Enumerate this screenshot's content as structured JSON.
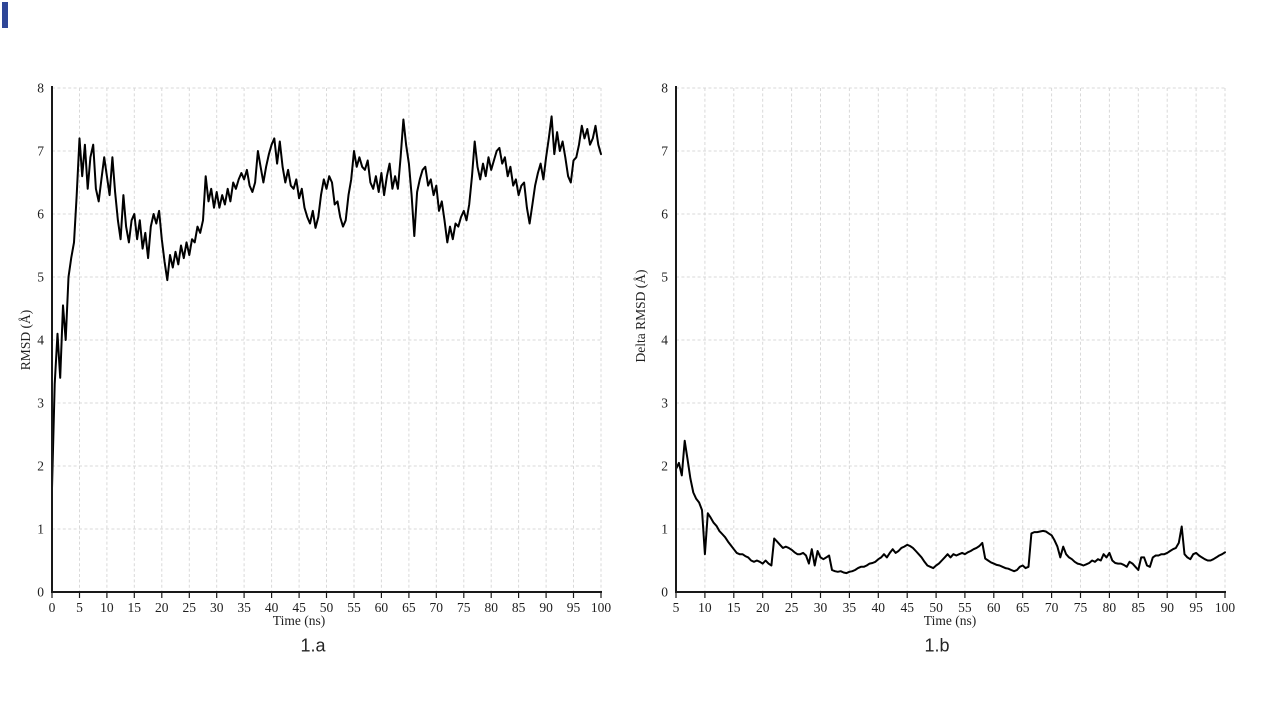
{
  "page": {
    "background_color": "#ffffff"
  },
  "decorations": {
    "corner_bar": {
      "color": "#2e4697"
    }
  },
  "chart_data": [
    {
      "id": "1a",
      "type": "line",
      "title": "",
      "caption": "1.a",
      "xlabel": "Time (ns)",
      "ylabel": "RMSD (Å)",
      "x_range": [
        0,
        100
      ],
      "y_range": [
        0,
        8
      ],
      "x_ticks": [
        0,
        5,
        10,
        15,
        20,
        25,
        30,
        35,
        40,
        45,
        50,
        55,
        60,
        65,
        70,
        75,
        80,
        85,
        90,
        95,
        100
      ],
      "y_ticks": [
        0,
        1,
        2,
        3,
        4,
        5,
        6,
        7,
        8
      ],
      "grid": true,
      "legend_position": "none",
      "line_color": "#000000",
      "grid_color": "#d9d9d9",
      "axis_color": "#191919",
      "series": [
        {
          "name": "RMSD",
          "x_start": 0,
          "x_step": 0.5,
          "values": [
            1.65,
            3.3,
            4.1,
            3.4,
            4.55,
            4.0,
            5.0,
            5.3,
            5.55,
            6.3,
            7.2,
            6.6,
            7.1,
            6.4,
            6.9,
            7.1,
            6.4,
            6.2,
            6.55,
            6.9,
            6.6,
            6.3,
            6.9,
            6.35,
            5.9,
            5.6,
            6.3,
            5.8,
            5.55,
            5.9,
            6.0,
            5.6,
            5.9,
            5.45,
            5.7,
            5.3,
            5.8,
            6.0,
            5.85,
            6.05,
            5.6,
            5.25,
            4.95,
            5.35,
            5.15,
            5.4,
            5.2,
            5.5,
            5.3,
            5.55,
            5.35,
            5.6,
            5.55,
            5.8,
            5.7,
            5.9,
            6.6,
            6.2,
            6.4,
            6.1,
            6.35,
            6.1,
            6.3,
            6.15,
            6.4,
            6.2,
            6.5,
            6.4,
            6.55,
            6.65,
            6.55,
            6.7,
            6.45,
            6.35,
            6.5,
            7.0,
            6.75,
            6.5,
            6.75,
            6.95,
            7.1,
            7.2,
            6.8,
            7.15,
            6.75,
            6.5,
            6.7,
            6.45,
            6.4,
            6.55,
            6.25,
            6.4,
            6.1,
            5.95,
            5.85,
            6.05,
            5.78,
            5.95,
            6.3,
            6.55,
            6.4,
            6.6,
            6.5,
            6.15,
            6.2,
            5.95,
            5.8,
            5.9,
            6.3,
            6.55,
            7.0,
            6.75,
            6.9,
            6.75,
            6.7,
            6.85,
            6.5,
            6.4,
            6.6,
            6.35,
            6.65,
            6.3,
            6.6,
            6.8,
            6.4,
            6.6,
            6.4,
            6.9,
            7.5,
            7.1,
            6.8,
            6.3,
            5.65,
            6.35,
            6.55,
            6.7,
            6.75,
            6.45,
            6.55,
            6.3,
            6.45,
            6.05,
            6.2,
            5.9,
            5.55,
            5.8,
            5.6,
            5.85,
            5.8,
            5.95,
            6.05,
            5.9,
            6.15,
            6.6,
            7.15,
            6.75,
            6.55,
            6.8,
            6.6,
            6.9,
            6.7,
            6.85,
            7.0,
            7.05,
            6.8,
            6.9,
            6.6,
            6.75,
            6.45,
            6.55,
            6.3,
            6.45,
            6.5,
            6.1,
            5.85,
            6.15,
            6.45,
            6.65,
            6.8,
            6.55,
            6.9,
            7.2,
            7.55,
            6.95,
            7.3,
            7.0,
            7.15,
            6.9,
            6.6,
            6.5,
            6.85,
            6.9,
            7.1,
            7.4,
            7.2,
            7.35,
            7.1,
            7.2,
            7.4,
            7.1,
            6.95
          ]
        }
      ]
    },
    {
      "id": "1b",
      "type": "line",
      "title": "",
      "caption": "1.b",
      "xlabel": "Time (ns)",
      "ylabel": "Delta RMSD (Å)",
      "x_range": [
        5,
        100
      ],
      "y_range": [
        0,
        8
      ],
      "x_ticks": [
        5,
        10,
        15,
        20,
        25,
        30,
        35,
        40,
        45,
        50,
        55,
        60,
        65,
        70,
        75,
        80,
        85,
        90,
        95,
        100
      ],
      "y_ticks": [
        0,
        1,
        2,
        3,
        4,
        5,
        6,
        7,
        8
      ],
      "grid": true,
      "legend_position": "none",
      "line_color": "#000000",
      "grid_color": "#d9d9d9",
      "axis_color": "#191919",
      "series": [
        {
          "name": "Delta RMSD",
          "x_start": 5,
          "x_step": 0.5,
          "values": [
            1.95,
            2.05,
            1.85,
            2.4,
            2.1,
            1.8,
            1.58,
            1.48,
            1.42,
            1.3,
            0.6,
            1.25,
            1.18,
            1.1,
            1.05,
            0.97,
            0.92,
            0.87,
            0.8,
            0.74,
            0.68,
            0.62,
            0.6,
            0.6,
            0.57,
            0.55,
            0.5,
            0.48,
            0.5,
            0.48,
            0.45,
            0.5,
            0.45,
            0.42,
            0.85,
            0.8,
            0.75,
            0.7,
            0.72,
            0.7,
            0.67,
            0.63,
            0.6,
            0.6,
            0.62,
            0.58,
            0.45,
            0.68,
            0.42,
            0.65,
            0.55,
            0.52,
            0.55,
            0.58,
            0.35,
            0.33,
            0.32,
            0.33,
            0.31,
            0.3,
            0.32,
            0.33,
            0.35,
            0.38,
            0.4,
            0.4,
            0.42,
            0.45,
            0.46,
            0.48,
            0.52,
            0.55,
            0.6,
            0.55,
            0.62,
            0.68,
            0.62,
            0.65,
            0.7,
            0.72,
            0.75,
            0.73,
            0.7,
            0.65,
            0.6,
            0.55,
            0.48,
            0.42,
            0.4,
            0.38,
            0.42,
            0.45,
            0.5,
            0.55,
            0.6,
            0.55,
            0.6,
            0.58,
            0.6,
            0.62,
            0.6,
            0.63,
            0.65,
            0.68,
            0.7,
            0.73,
            0.78,
            0.53,
            0.5,
            0.47,
            0.45,
            0.43,
            0.42,
            0.4,
            0.38,
            0.37,
            0.35,
            0.33,
            0.35,
            0.4,
            0.42,
            0.38,
            0.4,
            0.93,
            0.95,
            0.95,
            0.96,
            0.97,
            0.96,
            0.93,
            0.9,
            0.82,
            0.72,
            0.55,
            0.72,
            0.6,
            0.55,
            0.52,
            0.48,
            0.45,
            0.44,
            0.42,
            0.44,
            0.46,
            0.5,
            0.48,
            0.52,
            0.5,
            0.6,
            0.55,
            0.62,
            0.5,
            0.46,
            0.45,
            0.45,
            0.43,
            0.4,
            0.48,
            0.45,
            0.4,
            0.35,
            0.55,
            0.55,
            0.42,
            0.4,
            0.55,
            0.58,
            0.58,
            0.6,
            0.6,
            0.62,
            0.65,
            0.68,
            0.7,
            0.78,
            1.04,
            0.6,
            0.55,
            0.52,
            0.6,
            0.62,
            0.58,
            0.55,
            0.52,
            0.5,
            0.5,
            0.52,
            0.55,
            0.58,
            0.6,
            0.63
          ]
        }
      ]
    }
  ]
}
